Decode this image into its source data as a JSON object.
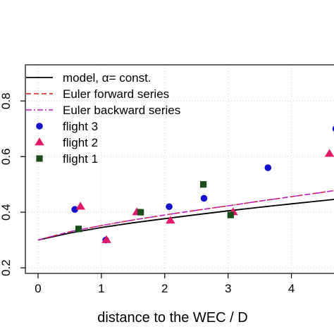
{
  "chart_data": {
    "type": "scatter",
    "xlabel": "distance to the WEC / D",
    "ylabel": "",
    "xlim": [
      -0.2,
      4.85
    ],
    "ylim": [
      0.18,
      0.93
    ],
    "xticks": [
      0,
      1,
      2,
      3,
      4
    ],
    "yticks": [
      0.2,
      0.4,
      0.6,
      0.8
    ],
    "grid": true,
    "legend_position": "top-left",
    "series": [
      {
        "name": "model, α= const.",
        "kind": "line",
        "color": "#000000",
        "dash": "solid",
        "x": [
          0,
          0.5,
          1,
          1.5,
          2,
          2.5,
          3,
          3.5,
          4,
          4.5,
          4.85
        ],
        "y": [
          0.3,
          0.325,
          0.345,
          0.362,
          0.377,
          0.391,
          0.405,
          0.418,
          0.43,
          0.442,
          0.45
        ]
      },
      {
        "name": "Euler forward series",
        "kind": "line",
        "color": "#e41a1c",
        "dash": "dashed",
        "x": [
          0,
          0.5,
          1,
          1.5,
          2,
          2.5,
          3,
          3.5,
          4,
          4.5,
          4.85
        ],
        "y": [
          0.3,
          0.33,
          0.352,
          0.372,
          0.39,
          0.407,
          0.423,
          0.44,
          0.456,
          0.472,
          0.484
        ]
      },
      {
        "name": "Euler backward series",
        "kind": "line",
        "color": "#bb22cc",
        "dash": "dashdot",
        "x": [
          0,
          0.5,
          1,
          1.5,
          2,
          2.5,
          3,
          3.5,
          4,
          4.5,
          4.85
        ],
        "y": [
          0.3,
          0.33,
          0.352,
          0.372,
          0.39,
          0.407,
          0.423,
          0.44,
          0.456,
          0.472,
          0.484
        ]
      },
      {
        "name": "flight 3",
        "kind": "points",
        "marker": "circle",
        "color": "#1111cc",
        "x": [
          0.58,
          1.07,
          2.07,
          2.62,
          3.63,
          4.7
        ],
        "y": [
          0.41,
          0.3,
          0.42,
          0.45,
          0.56,
          0.7
        ]
      },
      {
        "name": "flight 2",
        "kind": "points",
        "marker": "triangle",
        "color": "#e0186a",
        "x": [
          0.67,
          1.08,
          1.56,
          2.09,
          3.08,
          4.6
        ],
        "y": [
          0.42,
          0.3,
          0.4,
          0.37,
          0.4,
          0.61
        ]
      },
      {
        "name": "flight 1",
        "kind": "points",
        "marker": "square",
        "color": "#1a4d1a",
        "x": [
          0.64,
          1.62,
          2.61,
          3.04
        ],
        "y": [
          0.34,
          0.4,
          0.5,
          0.39
        ]
      }
    ]
  }
}
